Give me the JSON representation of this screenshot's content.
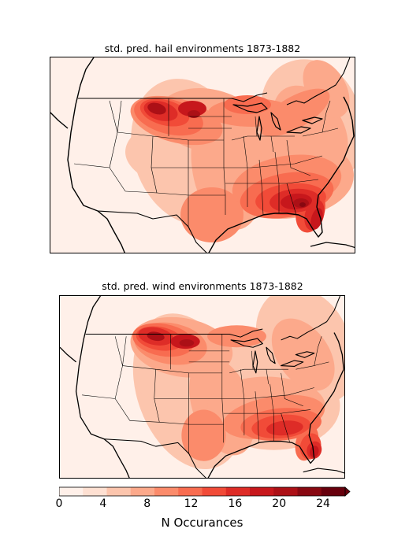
{
  "maps": [
    {
      "title": "std. pred. hail environments 1873-1882",
      "field": "hail"
    },
    {
      "title": "std. pred. wind environments 1873-1882",
      "field": "wind"
    }
  ],
  "colorbar": {
    "label": "N Occurances",
    "ticks": [
      "0",
      "4",
      "8",
      "12",
      "16",
      "20",
      "24"
    ],
    "min": 0,
    "max": 26,
    "extend": "max",
    "colors": [
      "#fff0e9",
      "#fee0d2",
      "#fcc5ad",
      "#fca98b",
      "#fb8b6b",
      "#f86c50",
      "#f14b38",
      "#de2c27",
      "#c7171c",
      "#ac1016",
      "#880811",
      "#67000d"
    ]
  },
  "chart_data": {
    "type": "heatmap",
    "region": "contiguous United States",
    "panels": [
      {
        "title": "std. pred. hail environments 1873-1882",
        "max_regions": [
          "Northern Plains (North/South Dakota)",
          "Southeast (Georgia/North Florida)"
        ],
        "approx_max": 24
      },
      {
        "title": "std. pred. wind environments 1873-1882",
        "max_regions": [
          "Northern Plains (North/South Dakota)",
          "Florida peninsula"
        ],
        "approx_max": 24
      }
    ],
    "colorbar_label": "N Occurances",
    "colorbar_range": [
      0,
      26
    ]
  }
}
